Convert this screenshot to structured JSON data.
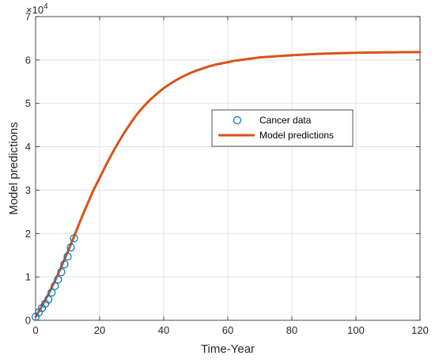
{
  "chart_data": {
    "type": "line",
    "xlabel": "Time-Year",
    "ylabel": "Model predictions",
    "xlim": [
      0,
      120
    ],
    "ylim": [
      0,
      70000
    ],
    "x_ticks": [
      0,
      20,
      40,
      60,
      80,
      100,
      120
    ],
    "y_ticks": [
      0,
      10000,
      20000,
      30000,
      40000,
      50000,
      60000,
      70000
    ],
    "x_tick_labels": [
      "0",
      "20",
      "40",
      "60",
      "80",
      "100",
      "120"
    ],
    "y_tick_labels": [
      "0",
      "1",
      "2",
      "3",
      "4",
      "5",
      "6",
      "7"
    ],
    "y_exponent": {
      "base": "×10",
      "power": "4"
    },
    "grid": true,
    "legend_position": "center-right",
    "series": [
      {
        "name": "Cancer data",
        "kind": "scatter",
        "marker": "circle",
        "color": "#0072BD",
        "x": [
          0,
          1,
          2,
          3,
          4,
          5,
          6,
          7,
          8,
          9,
          10,
          11,
          12
        ],
        "y": [
          800,
          1800,
          2800,
          3800,
          4800,
          6400,
          7900,
          9400,
          11100,
          12900,
          14700,
          16800,
          18900
        ]
      },
      {
        "name": "Model predictions",
        "kind": "line",
        "color": "#D95319",
        "x": [
          0,
          2,
          4,
          6,
          8,
          10,
          12,
          14,
          16,
          18,
          20,
          22,
          24,
          26,
          28,
          30,
          32,
          34,
          36,
          38,
          40,
          42,
          44,
          46,
          48,
          50,
          52,
          54,
          56,
          58,
          60,
          62,
          64,
          66,
          68,
          70,
          72,
          74,
          76,
          78,
          80,
          84,
          88,
          92,
          96,
          100,
          104,
          108,
          112,
          116,
          120
        ],
        "y": [
          800,
          3300,
          6000,
          9000,
          12300,
          15700,
          19300,
          23000,
          26500,
          29900,
          32800,
          35800,
          38600,
          41200,
          43600,
          45800,
          47800,
          49500,
          51000,
          52300,
          53500,
          54500,
          55400,
          56200,
          56900,
          57500,
          58000,
          58500,
          58900,
          59200,
          59500,
          59800,
          60000,
          60200,
          60400,
          60600,
          60700,
          60800,
          60900,
          61000,
          61100,
          61250,
          61400,
          61500,
          61600,
          61650,
          61700,
          61750,
          61780,
          61800,
          61820
        ]
      }
    ]
  }
}
